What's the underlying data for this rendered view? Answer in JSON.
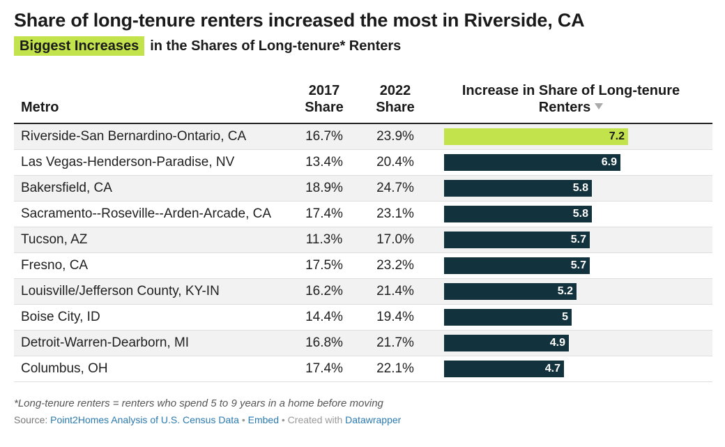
{
  "title": "Share of long-tenure renters increased the most in Riverside, CA",
  "subtitle": {
    "highlight": "Biggest Increases",
    "rest": "in the Shares of Long-tenure* Renters"
  },
  "colors": {
    "highlight": "#c3e34c",
    "bar": "#12323d",
    "row_shade": "#f2f2f2"
  },
  "headers": {
    "metro": "Metro",
    "share_2017_line1": "2017",
    "share_2017_line2": "Share",
    "share_2022_line1": "2022",
    "share_2022_line2": "Share",
    "increase_line1": "Increase in Share of Long-tenure",
    "increase_line2": "Renters",
    "sort_icon": "sort-descending-icon"
  },
  "chart_data": {
    "type": "table",
    "columns": [
      "Metro",
      "2017 Share",
      "2022 Share",
      "Increase in Share of Long-tenure Renters"
    ],
    "xlim": [
      0,
      10
    ],
    "rows": [
      {
        "metro": "Riverside-San Bernardino-Ontario, CA",
        "share_2017": "16.7%",
        "share_2022": "23.9%",
        "increase": 7.2,
        "highlight": true
      },
      {
        "metro": "Las Vegas-Henderson-Paradise, NV",
        "share_2017": "13.4%",
        "share_2022": "20.4%",
        "increase": 6.9
      },
      {
        "metro": "Bakersfield, CA",
        "share_2017": "18.9%",
        "share_2022": "24.7%",
        "increase": 5.8
      },
      {
        "metro": "Sacramento--Roseville--Arden-Arcade, CA",
        "share_2017": "17.4%",
        "share_2022": "23.1%",
        "increase": 5.8
      },
      {
        "metro": "Tucson, AZ",
        "share_2017": "11.3%",
        "share_2022": "17.0%",
        "increase": 5.7
      },
      {
        "metro": "Fresno, CA",
        "share_2017": "17.5%",
        "share_2022": "23.2%",
        "increase": 5.7
      },
      {
        "metro": "Louisville/Jefferson County, KY-IN",
        "share_2017": "16.2%",
        "share_2022": "21.4%",
        "increase": 5.2
      },
      {
        "metro": "Boise City, ID",
        "share_2017": "14.4%",
        "share_2022": "19.4%",
        "increase": 5
      },
      {
        "metro": "Detroit-Warren-Dearborn, MI",
        "share_2017": "16.8%",
        "share_2022": "21.7%",
        "increase": 4.9
      },
      {
        "metro": "Columbus, OH",
        "share_2017": "17.4%",
        "share_2022": "22.1%",
        "increase": 4.7
      }
    ]
  },
  "footnote": "*Long-tenure renters = renters who spend 5 to 9 years in a home before moving",
  "source": {
    "prefix": "Source: ",
    "source_link": "Point2Homes Analysis of U.S. Census Data",
    "dot1": " • ",
    "embed": "Embed",
    "dot2": " • Created with ",
    "datawrapper": "Datawrapper"
  }
}
